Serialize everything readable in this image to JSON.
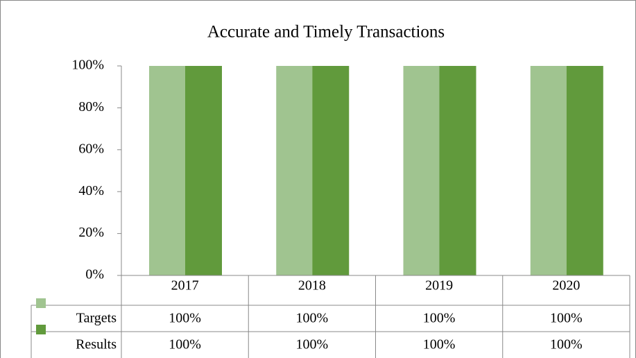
{
  "chart_data": {
    "type": "bar",
    "title": "Accurate and Timely Transactions",
    "categories": [
      "2017",
      "2018",
      "2019",
      "2020"
    ],
    "series": [
      {
        "name": "Targets",
        "color": "#a0c490",
        "values": [
          100,
          100,
          100,
          100
        ],
        "value_labels": [
          "100%",
          "100%",
          "100%",
          "100%"
        ]
      },
      {
        "name": "Results",
        "color": "#619a3c",
        "values": [
          100,
          100,
          100,
          100
        ],
        "value_labels": [
          "100%",
          "100%",
          "100%",
          "100%"
        ]
      }
    ],
    "ylim": [
      0,
      100
    ],
    "yticks": [
      {
        "value": 0,
        "label": "0%"
      },
      {
        "value": 20,
        "label": "20%"
      },
      {
        "value": 40,
        "label": "40%"
      },
      {
        "value": 60,
        "label": "60%"
      },
      {
        "value": 80,
        "label": "80%"
      },
      {
        "value": 100,
        "label": "100%"
      }
    ],
    "grid": false
  }
}
